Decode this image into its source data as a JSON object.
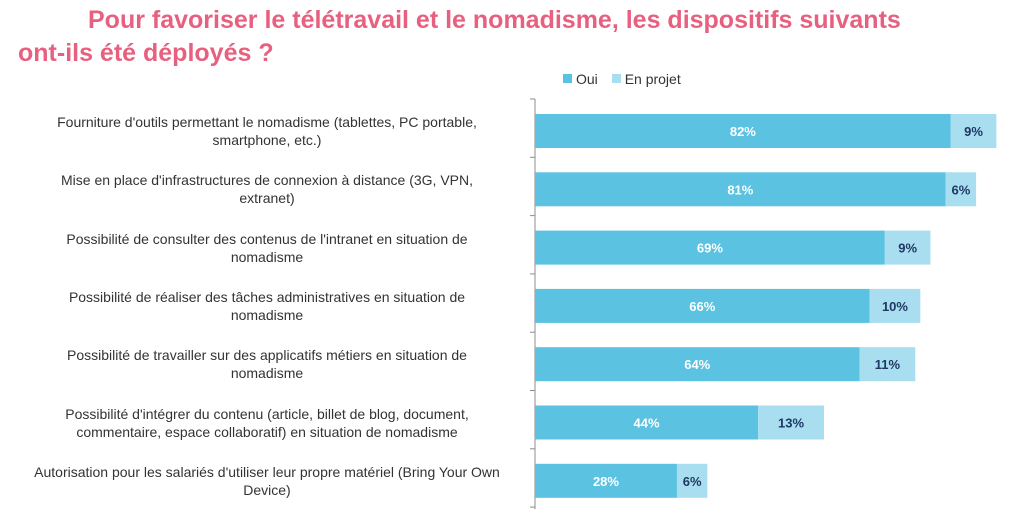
{
  "title_line1": "Pour favoriser le télétravail et le nomadisme, les dispositifs suivants",
  "title_line2": "ont-ils été déployés ?",
  "colors": {
    "oui": "#5bc2e1",
    "en_projet": "#a8def0",
    "title": "#e8607f",
    "axis": "#8c8c8c",
    "label_oui": "#ffffff",
    "label_projet": "#1f3864"
  },
  "chart_data": {
    "type": "bar",
    "orientation": "horizontal",
    "stacked": true,
    "title": "Pour favoriser le télétravail et le nomadisme, les dispositifs suivants ont-ils été déployés ?",
    "legend_position": "top",
    "grid": false,
    "xlim": [
      0,
      100
    ],
    "unit": "%",
    "categories": [
      "Fourniture d'outils permettant le nomadisme (tablettes, PC portable, smartphone, etc.)",
      "Mise en place d'infrastructures de connexion à distance (3G, VPN, extranet)",
      "Possibilité de consulter des contenus de l'intranet en situation de nomadisme",
      "Possibilité de réaliser des tâches administratives en situation de nomadisme",
      "Possibilité de travailler sur des applicatifs métiers en situation de nomadisme",
      "Possibilité d'intégrer du contenu (article, billet de blog, document, commentaire, espace collaboratif) en situation de nomadisme",
      "Autorisation pour les salariés d'utiliser leur propre matériel (Bring Your Own Device)"
    ],
    "category_lines": [
      [
        "Fourniture d'outils permettant le nomadisme (tablettes, PC portable,",
        "smartphone, etc.)"
      ],
      [
        "Mise en place d'infrastructures de connexion à distance (3G, VPN,",
        "extranet)"
      ],
      [
        "Possibilité de consulter des contenus de l'intranet en situation de",
        "nomadisme"
      ],
      [
        "Possibilité de réaliser des tâches administratives en situation de",
        "nomadisme"
      ],
      [
        "Possibilité de travailler sur des applicatifs métiers en situation de",
        "nomadisme"
      ],
      [
        "Possibilité d'intégrer du contenu (article, billet de blog, document,",
        "commentaire, espace collaboratif) en situation de nomadisme"
      ],
      [
        "Autorisation pour les salariés d'utiliser leur propre matériel (Bring Your Own",
        "Device)"
      ]
    ],
    "series": [
      {
        "name": "Oui",
        "values": [
          82,
          81,
          69,
          66,
          64,
          44,
          28
        ]
      },
      {
        "name": "En projet",
        "values": [
          9,
          6,
          9,
          10,
          11,
          13,
          6
        ]
      }
    ],
    "data_labels": {
      "Oui": [
        "82%",
        "81%",
        "69%",
        "66%",
        "64%",
        "44%",
        "28%"
      ],
      "En projet": [
        "9%",
        "6%",
        "9%",
        "10%",
        "11%",
        "13%",
        "6%"
      ]
    }
  }
}
